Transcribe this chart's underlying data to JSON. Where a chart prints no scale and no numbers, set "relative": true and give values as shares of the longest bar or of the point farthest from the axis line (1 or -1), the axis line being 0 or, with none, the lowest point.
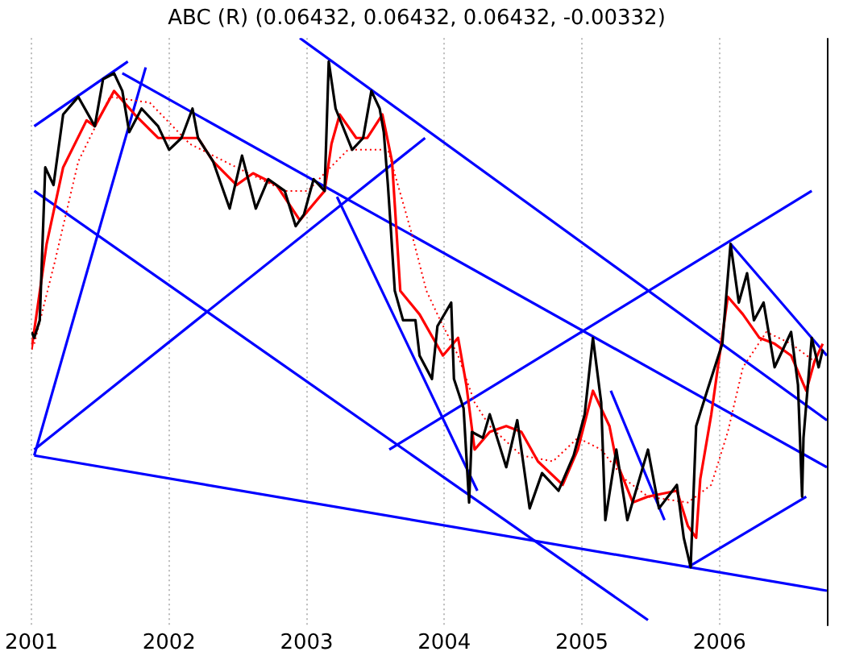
{
  "chart_data": {
    "type": "line",
    "title": "ABC (R) (0.06432, 0.06432, 0.06432, -0.00332)",
    "relative": true,
    "xlim": [
      2001,
      2006.78
    ],
    "xticks": [
      2001,
      2002,
      2003,
      2004,
      2005,
      2006
    ],
    "grid": "x",
    "legend": false,
    "marker": "none",
    "series": [
      {
        "color": "#000000",
        "x": [
          2001.0,
          2001.02,
          2001.06,
          2001.1,
          2001.16,
          2001.23,
          2001.34,
          2001.46,
          2001.52,
          2001.6,
          2001.66,
          2001.71,
          2001.8,
          2001.92,
          2002.0,
          2002.09,
          2002.17,
          2002.21,
          2002.32,
          2002.44,
          2002.53,
          2002.63,
          2002.72,
          2002.84,
          2002.92,
          2002.98,
          2003.05,
          2003.13,
          2003.16,
          2003.21,
          2003.33,
          2003.41,
          2003.47,
          2003.53,
          2003.56,
          2003.59,
          2003.61,
          2003.64,
          2003.7,
          2003.79,
          2003.82,
          2003.91,
          2003.95,
          2004.05,
          2004.07,
          2004.14,
          2004.18,
          2004.2,
          2004.28,
          2004.33,
          2004.45,
          2004.53,
          2004.62,
          2004.71,
          2004.83,
          2004.94,
          2005.02,
          2005.08,
          2005.14,
          2005.17,
          2005.25,
          2005.33,
          2005.48,
          2005.56,
          2005.69,
          2005.74,
          2005.79,
          2005.83,
          2005.91,
          2006.02,
          2006.08,
          2006.14,
          2006.2,
          2006.25,
          2006.32,
          2006.4,
          2006.52,
          2006.57,
          2006.6,
          2006.61,
          2006.67,
          2006.72,
          2006.75
        ],
        "values": [
          0.5,
          0.49,
          0.52,
          0.78,
          0.75,
          0.87,
          0.9,
          0.85,
          0.93,
          0.94,
          0.91,
          0.84,
          0.88,
          0.85,
          0.81,
          0.83,
          0.88,
          0.83,
          0.79,
          0.71,
          0.8,
          0.71,
          0.76,
          0.74,
          0.68,
          0.7,
          0.76,
          0.74,
          0.96,
          0.88,
          0.81,
          0.83,
          0.91,
          0.88,
          0.84,
          0.75,
          0.68,
          0.57,
          0.52,
          0.52,
          0.46,
          0.42,
          0.51,
          0.55,
          0.42,
          0.37,
          0.21,
          0.33,
          0.32,
          0.36,
          0.27,
          0.35,
          0.2,
          0.26,
          0.23,
          0.29,
          0.36,
          0.49,
          0.38,
          0.18,
          0.3,
          0.18,
          0.3,
          0.2,
          0.24,
          0.15,
          0.1,
          0.34,
          0.4,
          0.48,
          0.65,
          0.55,
          0.6,
          0.52,
          0.55,
          0.44,
          0.5,
          0.41,
          0.22,
          0.32,
          0.49,
          0.44,
          0.47
        ]
      },
      {
        "color": "#ff0000",
        "x": [
          2001.0,
          2001.11,
          2001.23,
          2001.4,
          2001.46,
          2001.6,
          2001.75,
          2001.92,
          2002.09,
          2002.21,
          2002.32,
          2002.49,
          2002.61,
          2002.78,
          2002.95,
          2003.13,
          2003.18,
          2003.24,
          2003.36,
          2003.44,
          2003.55,
          2003.62,
          2003.68,
          2003.82,
          2003.99,
          2004.1,
          2004.16,
          2004.22,
          2004.33,
          2004.45,
          2004.56,
          2004.68,
          2004.86,
          2004.97,
          2005.08,
          2005.2,
          2005.25,
          2005.37,
          2005.48,
          2005.69,
          2005.77,
          2005.83,
          2005.86,
          2005.94,
          2006.06,
          2006.17,
          2006.29,
          2006.4,
          2006.52,
          2006.63,
          2006.69,
          2006.75
        ],
        "values": [
          0.47,
          0.65,
          0.78,
          0.86,
          0.85,
          0.91,
          0.87,
          0.83,
          0.83,
          0.83,
          0.79,
          0.75,
          0.77,
          0.75,
          0.69,
          0.74,
          0.82,
          0.87,
          0.83,
          0.83,
          0.87,
          0.79,
          0.57,
          0.53,
          0.46,
          0.49,
          0.41,
          0.3,
          0.33,
          0.34,
          0.33,
          0.28,
          0.24,
          0.3,
          0.4,
          0.34,
          0.28,
          0.21,
          0.22,
          0.23,
          0.17,
          0.15,
          0.25,
          0.36,
          0.56,
          0.53,
          0.49,
          0.48,
          0.46,
          0.4,
          0.45,
          0.48
        ]
      },
      {
        "color": "#ff0000",
        "line_style": "dotted",
        "x": [
          2001.02,
          2001.17,
          2001.34,
          2001.57,
          2001.86,
          2002.15,
          2002.49,
          2002.84,
          2003.01,
          2003.13,
          2003.3,
          2003.59,
          2003.76,
          2003.87,
          2003.97,
          2004.1,
          2004.22,
          2004.33,
          2004.56,
          2004.79,
          2004.97,
          2005.14,
          2005.31,
          2005.48,
          2005.77,
          2005.94,
          2006.06,
          2006.17,
          2006.34,
          2006.52,
          2006.69
        ],
        "values": [
          0.48,
          0.62,
          0.79,
          0.9,
          0.89,
          0.82,
          0.78,
          0.74,
          0.74,
          0.77,
          0.81,
          0.81,
          0.67,
          0.57,
          0.52,
          0.46,
          0.38,
          0.34,
          0.29,
          0.28,
          0.32,
          0.3,
          0.25,
          0.22,
          0.21,
          0.24,
          0.33,
          0.44,
          0.5,
          0.48,
          0.45
        ]
      },
      {
        "color": "#0000ff",
        "x": [
          2001.02,
          2001.7
        ],
        "values": [
          0.85,
          0.96
        ]
      },
      {
        "color": "#0000ff",
        "x": [
          2001.66,
          2006.78
        ],
        "values": [
          0.94,
          0.27
        ]
      },
      {
        "color": "#0000ff",
        "x": [
          2002.95,
          2006.78
        ],
        "values": [
          1.0,
          0.35
        ]
      },
      {
        "color": "#0000ff",
        "x": [
          2001.02,
          2001.83
        ],
        "values": [
          0.29,
          0.95
        ]
      },
      {
        "color": "#0000ff",
        "x": [
          2001.02,
          2003.86
        ],
        "values": [
          0.3,
          0.83
        ]
      },
      {
        "color": "#0000ff",
        "x": [
          2001.02,
          2005.48
        ],
        "values": [
          0.74,
          0.01
        ]
      },
      {
        "color": "#0000ff",
        "x": [
          2001.02,
          2006.78
        ],
        "values": [
          0.29,
          0.06
        ]
      },
      {
        "color": "#0000ff",
        "x": [
          2003.22,
          2004.24
        ],
        "values": [
          0.73,
          0.23
        ]
      },
      {
        "color": "#0000ff",
        "x": [
          2003.6,
          2006.67
        ],
        "values": [
          0.3,
          0.74
        ]
      },
      {
        "color": "#0000ff",
        "x": [
          2005.21,
          2005.6
        ],
        "values": [
          0.4,
          0.18
        ]
      },
      {
        "color": "#0000ff",
        "x": [
          2005.77,
          2006.63
        ],
        "values": [
          0.1,
          0.22
        ]
      },
      {
        "color": "#0000ff",
        "x": [
          2006.08,
          2006.78
        ],
        "values": [
          0.65,
          0.46
        ]
      }
    ]
  }
}
